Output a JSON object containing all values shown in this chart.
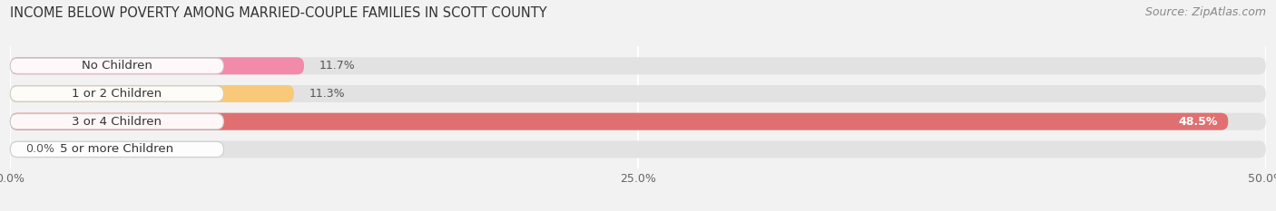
{
  "title": "INCOME BELOW POVERTY AMONG MARRIED-COUPLE FAMILIES IN SCOTT COUNTY",
  "source": "Source: ZipAtlas.com",
  "categories": [
    "No Children",
    "1 or 2 Children",
    "3 or 4 Children",
    "5 or more Children"
  ],
  "values": [
    11.7,
    11.3,
    48.5,
    0.0
  ],
  "bar_colors": [
    "#f28aaa",
    "#f9c97a",
    "#e07070",
    "#9cb8d8"
  ],
  "background_color": "#f2f2f2",
  "bar_bg_color": "#e2e2e2",
  "xlim": [
    0,
    50
  ],
  "xticks": [
    0,
    25,
    50
  ],
  "xtick_labels": [
    "0.0%",
    "25.0%",
    "50.0%"
  ],
  "title_fontsize": 10.5,
  "source_fontsize": 9,
  "label_fontsize": 9.5,
  "value_fontsize": 9,
  "tick_fontsize": 9,
  "bar_height": 0.62,
  "bar_gap": 1.0
}
